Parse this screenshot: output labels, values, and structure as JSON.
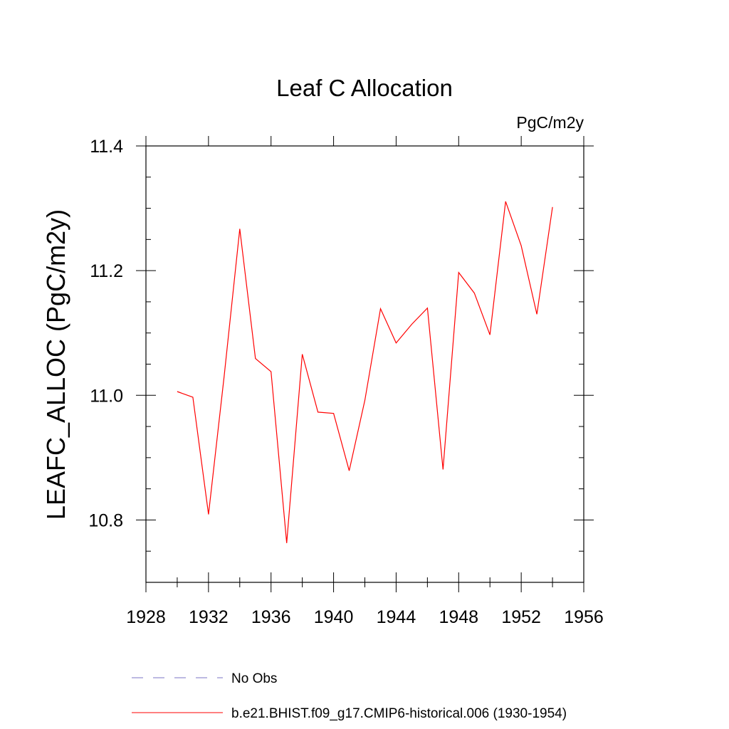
{
  "chart_data": {
    "type": "line",
    "title": "Leaf C Allocation",
    "units_label": "PgC/m2y",
    "xlabel": "",
    "ylabel": "LEAFC_ALLOC  (PgC/m2y)",
    "xlim": [
      1928,
      1956
    ],
    "ylim": [
      10.7,
      11.4
    ],
    "x_ticks": [
      "1928",
      "1932",
      "1936",
      "1940",
      "1944",
      "1948",
      "1952",
      "1956"
    ],
    "y_ticks": [
      "10.8",
      "11.0",
      "11.2",
      "11.4"
    ],
    "x_minor_step": 2,
    "y_minor_step": 0.05,
    "grid": false,
    "legend_position": "bottom",
    "series": [
      {
        "name": "b.e21.BHIST.f09_g17.CMIP6-historical.006 (1930-1954)",
        "color": "#ff0000",
        "style": "solid",
        "x": [
          1930,
          1931,
          1932,
          1933,
          1934,
          1935,
          1936,
          1937,
          1938,
          1939,
          1940,
          1941,
          1942,
          1943,
          1944,
          1945,
          1946,
          1947,
          1948,
          1949,
          1950,
          1951,
          1952,
          1953,
          1954
        ],
        "y": [
          11.006,
          10.997,
          10.809,
          11.03,
          11.267,
          11.059,
          11.038,
          10.763,
          11.066,
          10.973,
          10.971,
          10.879,
          10.992,
          11.139,
          11.084,
          11.114,
          11.14,
          10.881,
          11.197,
          11.164,
          11.097,
          11.311,
          11.24,
          11.13,
          11.302
        ]
      }
    ],
    "legend": [
      {
        "label": "No Obs",
        "color": "#7b76c4",
        "style": "dashed"
      },
      {
        "label": "b.e21.BHIST.f09_g17.CMIP6-historical.006 (1930-1954)",
        "color": "#ff0000",
        "style": "solid"
      }
    ]
  }
}
